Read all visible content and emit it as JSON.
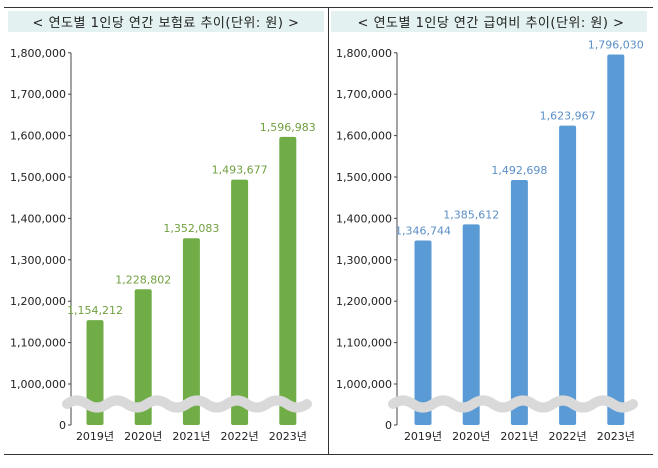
{
  "chart_data": [
    {
      "type": "bar",
      "title": "< 연도별 1인당 연간 보험료 추이(단위: 원) >",
      "categories": [
        "2019년",
        "2020년",
        "2021년",
        "2022년",
        "2023년"
      ],
      "values": [
        1154212,
        1228802,
        1352083,
        1493677,
        1596983
      ],
      "value_labels": [
        "1,154,212",
        "1,228,802",
        "1,352,083",
        "1,493,677",
        "1,596,983"
      ],
      "yticks": [
        "0",
        "1,000,000",
        "1,100,000",
        "1,200,000",
        "1,300,000",
        "1,400,000",
        "1,500,000",
        "1,600,000",
        "1,700,000",
        "1,800,000"
      ],
      "ylim": [
        1000000,
        1800000
      ],
      "axis_break": true,
      "color": "#70ad47",
      "label_color": "#70a040"
    },
    {
      "type": "bar",
      "title": "< 연도별 1인당 연간 급여비 추이(단위: 원) >",
      "categories": [
        "2019년",
        "2020년",
        "2021년",
        "2022년",
        "2023년"
      ],
      "values": [
        1346744,
        1385612,
        1492698,
        1623967,
        1796030
      ],
      "value_labels": [
        "1,346,744",
        "1,385,612",
        "1,492,698",
        "1,623,967",
        "1,796,030"
      ],
      "yticks": [
        "0",
        "1,000,000",
        "1,100,000",
        "1,200,000",
        "1,300,000",
        "1,400,000",
        "1,500,000",
        "1,600,000",
        "1,700,000",
        "1,800,000"
      ],
      "ylim": [
        1000000,
        1800000
      ],
      "axis_break": true,
      "color": "#5b9bd5",
      "label_color": "#5b8fc8"
    }
  ]
}
